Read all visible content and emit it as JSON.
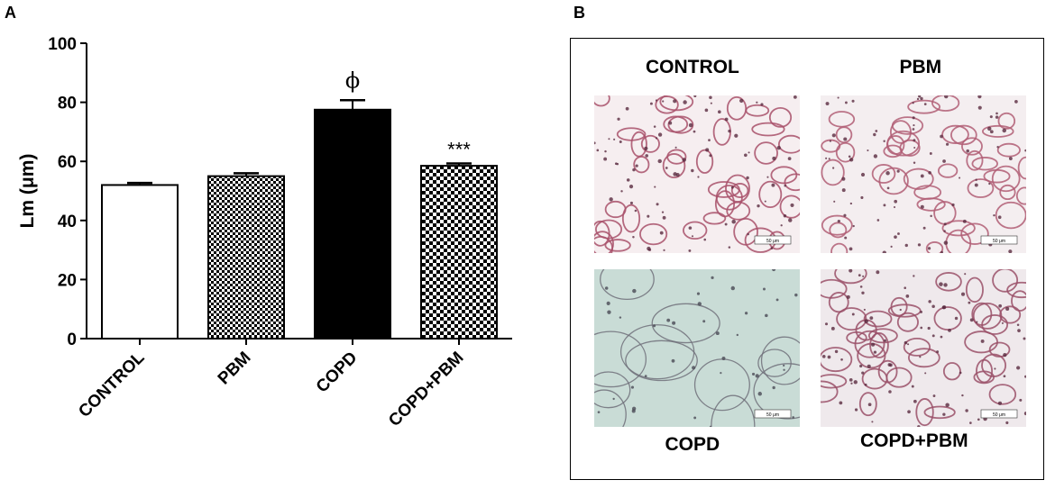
{
  "panel_a_label": "A",
  "panel_b_label": "B",
  "chart_data": {
    "type": "bar",
    "title": "",
    "ylabel": "Lm (μm)",
    "xlabel": "",
    "ylim": [
      0,
      100
    ],
    "yticks": [
      "0",
      "20",
      "40",
      "60",
      "80",
      "100"
    ],
    "categories": [
      "CONTROL",
      "PBM",
      "COPD",
      "COPD+PBM"
    ],
    "values": [
      52,
      55,
      77.5,
      58.5
    ],
    "errors": [
      0.7,
      1,
      3.2,
      0.8
    ],
    "fills": [
      "white",
      "small-checker",
      "black",
      "large-checker"
    ],
    "annotations": [
      "",
      "",
      "ϕ",
      "***"
    ],
    "grid": false
  },
  "panel_b": {
    "images": [
      {
        "label": "CONTROL",
        "tint": "#f6eef0",
        "tissue": "#a8506a",
        "density": "dense",
        "scale_text": "50 μm"
      },
      {
        "label": "PBM",
        "tint": "#f4eef0",
        "tissue": "#b05d74",
        "density": "dense",
        "scale_text": "50 μm"
      },
      {
        "label": "COPD",
        "tint": "#c9dcd6",
        "tissue": "#70707a",
        "density": "sparse",
        "scale_text": "50 μm"
      },
      {
        "label": "COPD+PBM",
        "tint": "#efe9ec",
        "tissue": "#9a5068",
        "density": "dense",
        "scale_text": "50 μm"
      }
    ]
  }
}
